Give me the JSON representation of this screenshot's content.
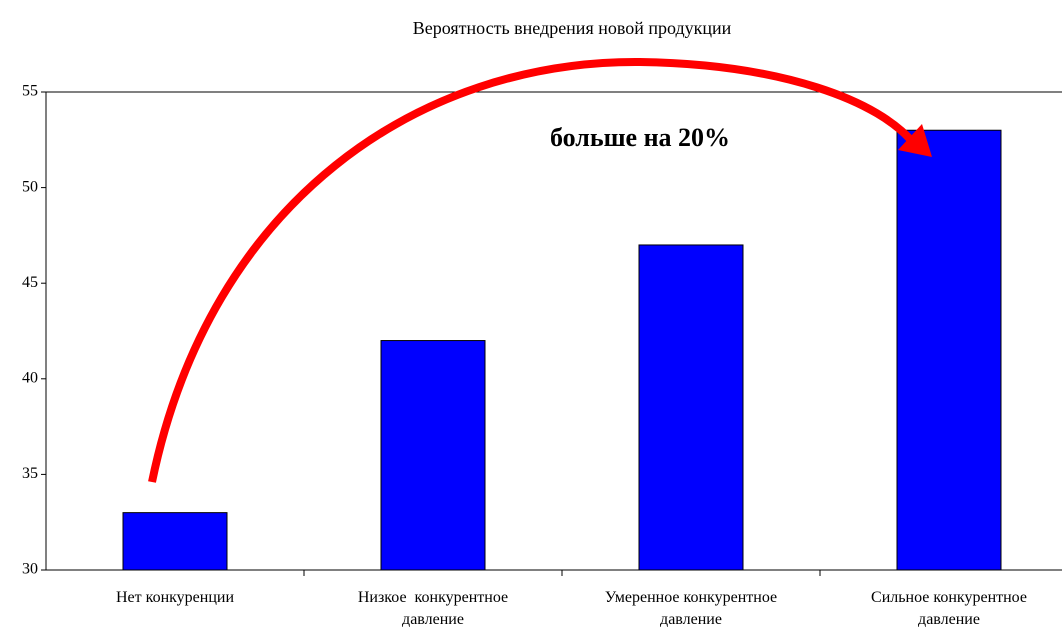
{
  "chart_data": {
    "type": "bar",
    "title": "Вероятность внедрения новой продукции",
    "categories": [
      "Нет конкуренции",
      "Низкое  конкурентное\nдавление",
      "Умеренное конкурентное\nдавление",
      "Сильное конкурентное\nдавление"
    ],
    "values": [
      33,
      42,
      47,
      53
    ],
    "color": "#0000ff",
    "ylim": [
      30,
      55
    ],
    "yticks": [
      30,
      35,
      40,
      45,
      50,
      55
    ],
    "grid": false,
    "annotation": "больше на 20%"
  }
}
